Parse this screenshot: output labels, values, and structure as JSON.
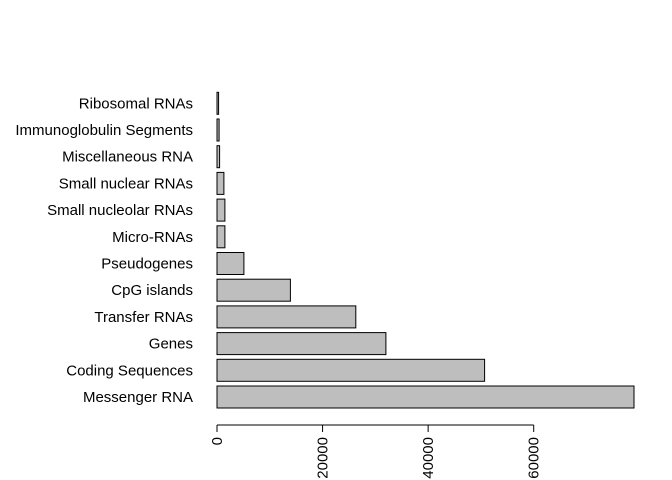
{
  "chart_data": {
    "type": "bar",
    "orientation": "horizontal",
    "categories": [
      "Messenger RNA",
      "Coding Sequences",
      "Genes",
      "Transfer RNAs",
      "CpG islands",
      "Pseudogenes",
      "Micro-RNAs",
      "Small nucleolar RNAs",
      "Small nuclear RNAs",
      "Miscellaneous RNA",
      "Immunoglobulin Segments",
      "Ribosomal RNAs"
    ],
    "values": [
      79000,
      50700,
      32000,
      26300,
      13900,
      5100,
      1500,
      1500,
      1300,
      500,
      400,
      300
    ],
    "xlim": [
      0,
      79000
    ],
    "xticks": [
      0,
      20000,
      40000,
      60000
    ],
    "xtick_labels": [
      "0",
      "20000",
      "40000",
      "60000"
    ],
    "title": "",
    "xlabel": "",
    "ylabel": "",
    "bar_color": "#bebebe",
    "grid": false,
    "legend": false
  }
}
